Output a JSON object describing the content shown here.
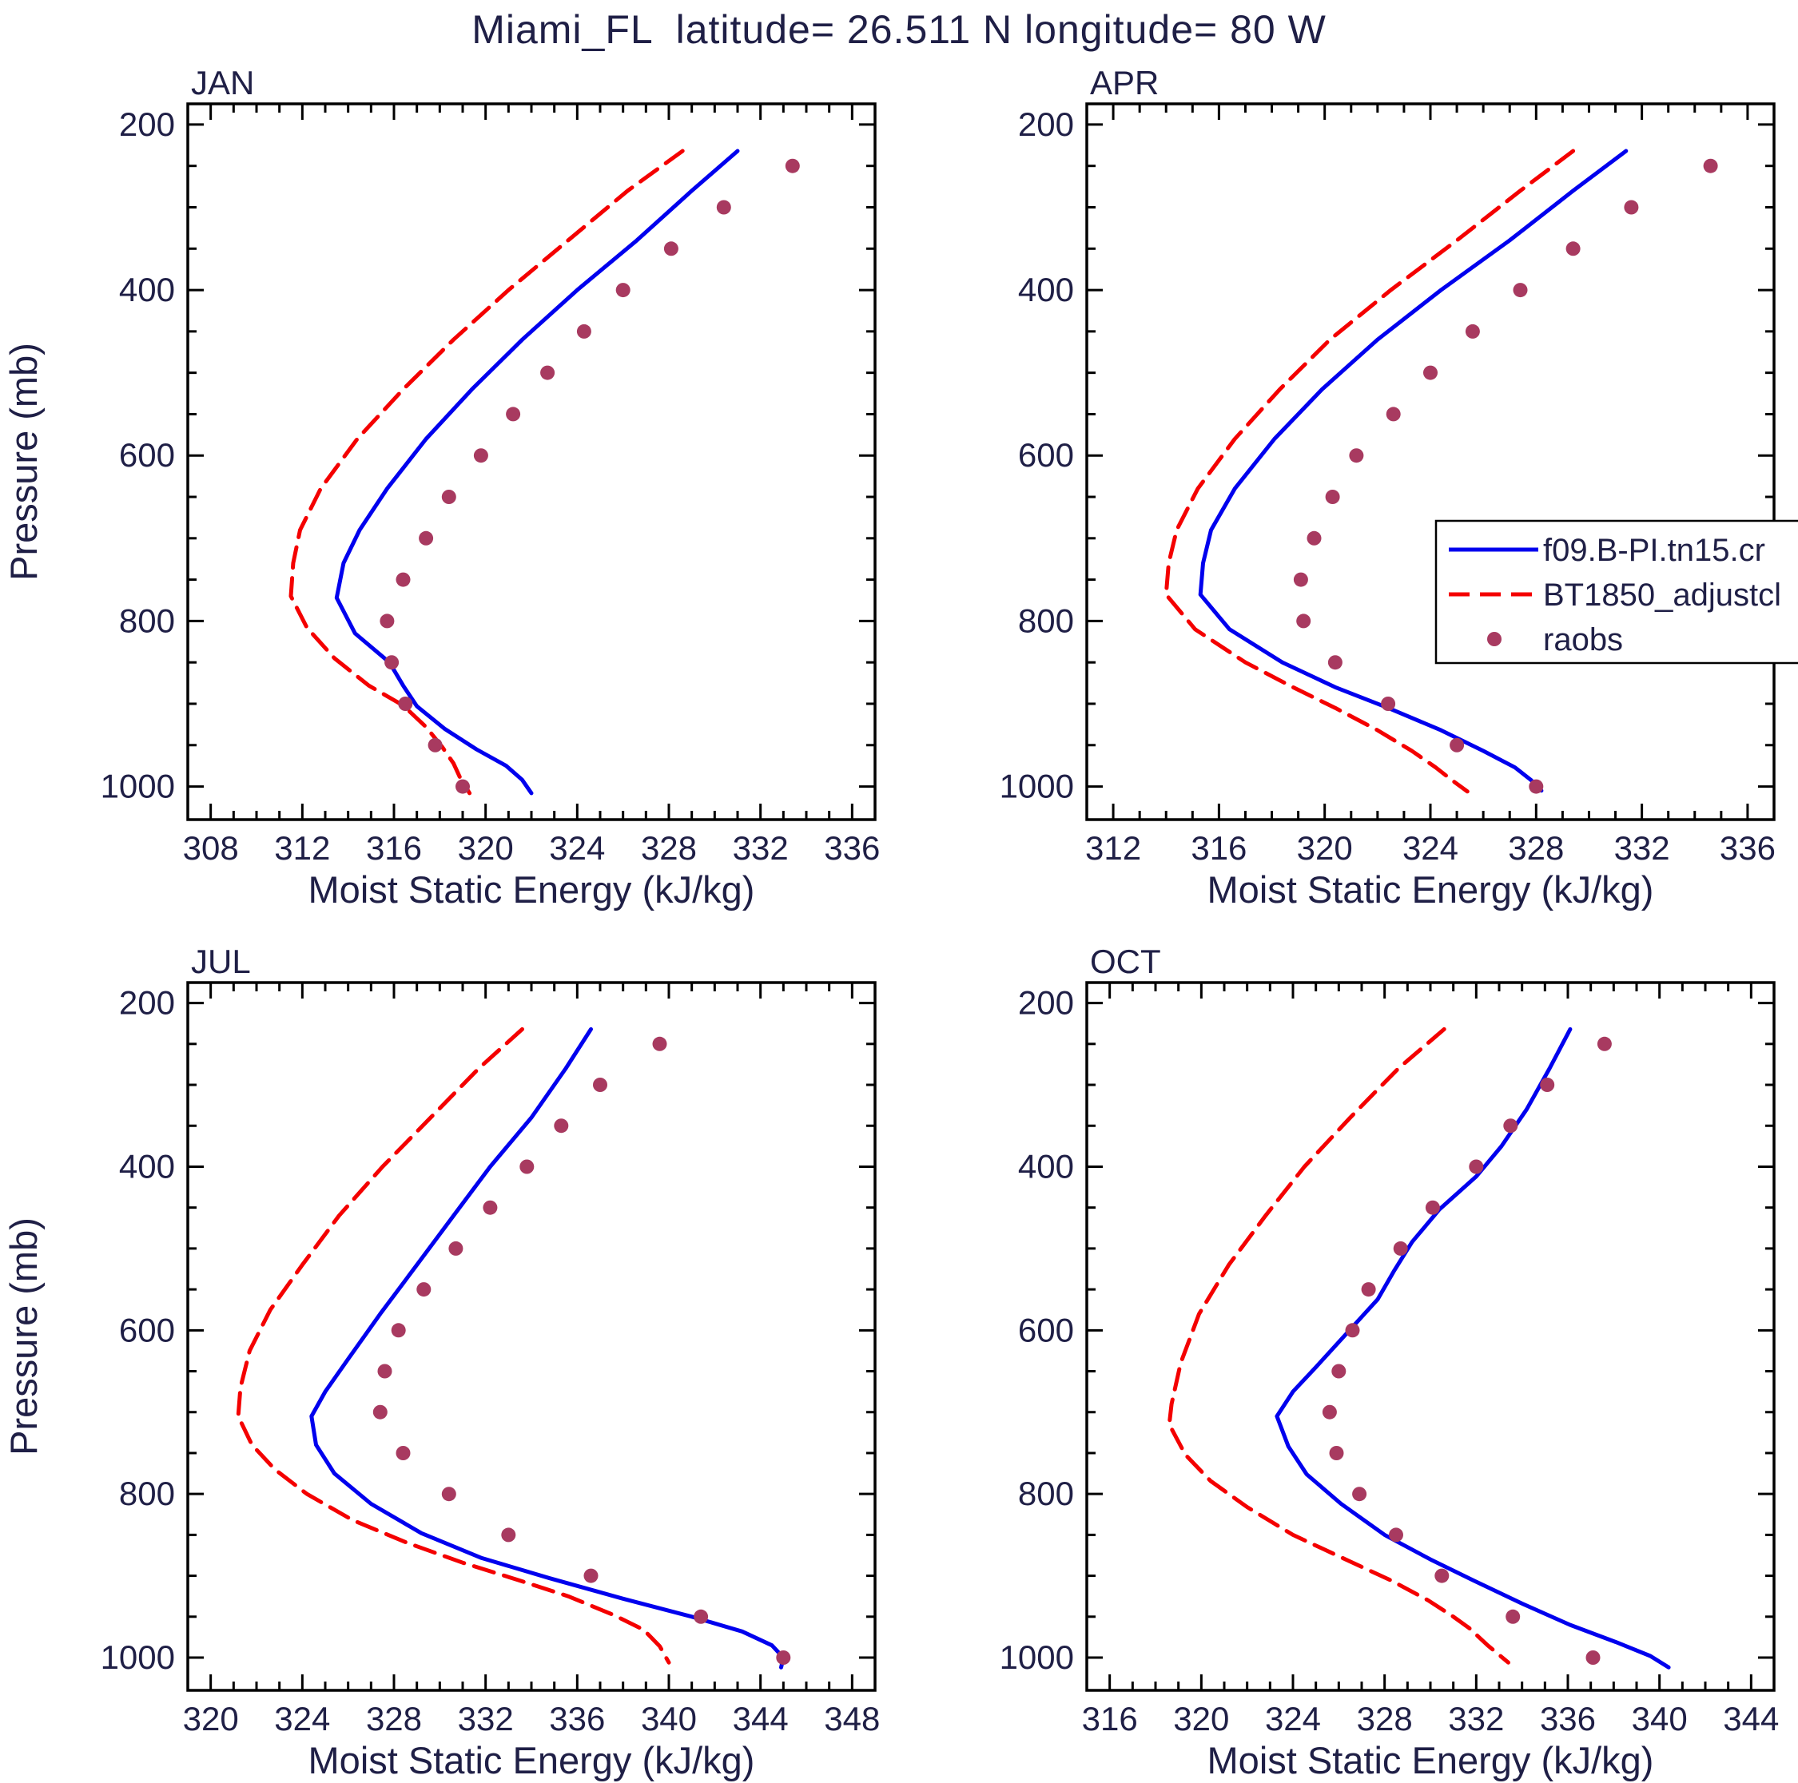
{
  "title": "Miami_FL  latitude= 26.511 N longitude= 80 W",
  "axes": {
    "x_label": "Moist Static Energy (kJ/kg)",
    "y_label": "Pressure (mb)",
    "y_ticks": [
      200,
      400,
      600,
      800,
      1000
    ],
    "y_range": [
      175,
      1040
    ],
    "y_minor_step": 50
  },
  "colors": {
    "model_line": "#0000ee",
    "bt1850_line": "#f40000",
    "raobs_dots": "#a83a60",
    "frame": "#000000",
    "text": "#1f1f46"
  },
  "legend": {
    "panel": "APR",
    "entries": [
      {
        "label": "f09.B-PI.tn15.cr",
        "style": "line-solid",
        "color": "#0000ee"
      },
      {
        "label": "BT1850_adjustcl",
        "style": "line-dashed",
        "color": "#f40000"
      },
      {
        "label": "raobs",
        "style": "dot",
        "color": "#a83a60"
      }
    ]
  },
  "chart_data": [
    {
      "type": "line",
      "label": "JAN",
      "x_ticks": [
        308,
        312,
        316,
        320,
        324,
        328,
        332,
        336
      ],
      "x_range": [
        307,
        337
      ],
      "x_minor_step": 1,
      "series": [
        {
          "name": "BT1850_adjustcl",
          "style": "dashed",
          "color": "#f40000",
          "points": [
            [
              328.6,
              232
            ],
            [
              326.2,
              280
            ],
            [
              323.6,
              340
            ],
            [
              321.0,
              400
            ],
            [
              318.6,
              460
            ],
            [
              316.4,
              520
            ],
            [
              314.4,
              580
            ],
            [
              312.8,
              640
            ],
            [
              311.9,
              690
            ],
            [
              311.6,
              730
            ],
            [
              311.5,
              770
            ],
            [
              312.2,
              808
            ],
            [
              313.4,
              845
            ],
            [
              314.9,
              878
            ],
            [
              316.4,
              902
            ],
            [
              317.4,
              928
            ],
            [
              318.1,
              952
            ],
            [
              318.6,
              972
            ],
            [
              318.9,
              990
            ],
            [
              319.3,
              1008
            ]
          ]
        },
        {
          "name": "f09.B-PI.tn15.cr",
          "style": "solid",
          "color": "#0000ee",
          "points": [
            [
              331.0,
              232
            ],
            [
              329.0,
              280
            ],
            [
              326.6,
              340
            ],
            [
              324.0,
              400
            ],
            [
              321.6,
              460
            ],
            [
              319.4,
              520
            ],
            [
              317.4,
              580
            ],
            [
              315.7,
              640
            ],
            [
              314.5,
              690
            ],
            [
              313.8,
              730
            ],
            [
              313.5,
              772
            ],
            [
              314.3,
              815
            ],
            [
              315.8,
              850
            ],
            [
              316.4,
              878
            ],
            [
              317.0,
              903
            ],
            [
              318.2,
              930
            ],
            [
              319.6,
              955
            ],
            [
              320.9,
              975
            ],
            [
              321.6,
              992
            ],
            [
              322.0,
              1008
            ]
          ]
        },
        {
          "name": "raobs",
          "style": "dots",
          "color": "#a83a60",
          "points": [
            [
              333.4,
              250
            ],
            [
              330.4,
              300
            ],
            [
              328.1,
              350
            ],
            [
              326.0,
              400
            ],
            [
              324.3,
              450
            ],
            [
              322.7,
              500
            ],
            [
              321.2,
              550
            ],
            [
              319.8,
              600
            ],
            [
              318.4,
              650
            ],
            [
              317.4,
              700
            ],
            [
              316.4,
              750
            ],
            [
              315.7,
              800
            ],
            [
              315.9,
              850
            ],
            [
              316.5,
              900
            ],
            [
              317.8,
              950
            ],
            [
              319.0,
              1000
            ]
          ]
        }
      ]
    },
    {
      "type": "line",
      "label": "APR",
      "x_ticks": [
        312,
        316,
        320,
        324,
        328,
        332,
        336
      ],
      "x_range": [
        311,
        337
      ],
      "x_minor_step": 1,
      "series": [
        {
          "name": "BT1850_adjustcl",
          "style": "dashed",
          "color": "#f40000",
          "points": [
            [
              329.4,
              232
            ],
            [
              327.4,
              280
            ],
            [
              325.0,
              340
            ],
            [
              322.5,
              400
            ],
            [
              320.2,
              460
            ],
            [
              318.3,
              520
            ],
            [
              316.6,
              580
            ],
            [
              315.2,
              640
            ],
            [
              314.4,
              690
            ],
            [
              314.1,
              730
            ],
            [
              314.0,
              768
            ],
            [
              315.1,
              810
            ],
            [
              317.0,
              850
            ],
            [
              318.8,
              880
            ],
            [
              320.4,
              905
            ],
            [
              322.0,
              932
            ],
            [
              323.3,
              957
            ],
            [
              324.2,
              977
            ],
            [
              324.8,
              992
            ],
            [
              325.4,
              1006
            ]
          ]
        },
        {
          "name": "f09.B-PI.tn15.cr",
          "style": "solid",
          "color": "#0000ee",
          "points": [
            [
              331.4,
              232
            ],
            [
              329.4,
              280
            ],
            [
              327.0,
              340
            ],
            [
              324.4,
              400
            ],
            [
              322.0,
              460
            ],
            [
              319.9,
              520
            ],
            [
              318.1,
              580
            ],
            [
              316.6,
              640
            ],
            [
              315.7,
              690
            ],
            [
              315.4,
              730
            ],
            [
              315.3,
              768
            ],
            [
              316.4,
              810
            ],
            [
              318.4,
              850
            ],
            [
              320.4,
              880
            ],
            [
              322.4,
              905
            ],
            [
              324.4,
              932
            ],
            [
              326.0,
              957
            ],
            [
              327.2,
              977
            ],
            [
              327.8,
              992
            ],
            [
              328.2,
              1005
            ]
          ]
        },
        {
          "name": "raobs",
          "style": "dots",
          "color": "#a83a60",
          "points": [
            [
              334.6,
              250
            ],
            [
              331.6,
              300
            ],
            [
              329.4,
              350
            ],
            [
              327.4,
              400
            ],
            [
              325.6,
              450
            ],
            [
              324.0,
              500
            ],
            [
              322.6,
              550
            ],
            [
              321.2,
              600
            ],
            [
              320.3,
              650
            ],
            [
              319.6,
              700
            ],
            [
              319.1,
              750
            ],
            [
              319.2,
              800
            ],
            [
              320.4,
              850
            ],
            [
              322.4,
              900
            ],
            [
              325.0,
              950
            ],
            [
              328.0,
              1000
            ]
          ]
        }
      ]
    },
    {
      "type": "line",
      "label": "JUL",
      "x_ticks": [
        320,
        324,
        328,
        332,
        336,
        340,
        344,
        348
      ],
      "x_range": [
        319,
        349
      ],
      "x_minor_step": 1,
      "series": [
        {
          "name": "BT1850_adjustcl",
          "style": "dashed",
          "color": "#f40000",
          "points": [
            [
              333.6,
              232
            ],
            [
              331.7,
              280
            ],
            [
              329.6,
              340
            ],
            [
              327.5,
              400
            ],
            [
              325.6,
              460
            ],
            [
              324.0,
              520
            ],
            [
              322.6,
              575
            ],
            [
              321.7,
              625
            ],
            [
              321.3,
              670
            ],
            [
              321.2,
              705
            ],
            [
              321.8,
              740
            ],
            [
              322.8,
              770
            ],
            [
              324.2,
              800
            ],
            [
              326.2,
              832
            ],
            [
              328.6,
              860
            ],
            [
              331.0,
              884
            ],
            [
              333.4,
              905
            ],
            [
              335.6,
              925
            ],
            [
              337.6,
              948
            ],
            [
              338.9,
              966
            ],
            [
              339.6,
              986
            ],
            [
              340.0,
              1006
            ]
          ]
        },
        {
          "name": "f09.B-PI.tn15.cr",
          "style": "solid",
          "color": "#0000ee",
          "points": [
            [
              336.6,
              232
            ],
            [
              335.5,
              280
            ],
            [
              334.0,
              340
            ],
            [
              332.2,
              400
            ],
            [
              330.6,
              460
            ],
            [
              329.0,
              520
            ],
            [
              327.4,
              580
            ],
            [
              326.0,
              635
            ],
            [
              325.0,
              675
            ],
            [
              324.4,
              705
            ],
            [
              324.6,
              740
            ],
            [
              325.4,
              775
            ],
            [
              327.0,
              812
            ],
            [
              329.2,
              848
            ],
            [
              331.8,
              878
            ],
            [
              334.8,
              903
            ],
            [
              338.0,
              928
            ],
            [
              341.0,
              950
            ],
            [
              343.2,
              968
            ],
            [
              344.5,
              985
            ],
            [
              345.0,
              1000
            ],
            [
              344.9,
              1012
            ]
          ]
        },
        {
          "name": "raobs",
          "style": "dots",
          "color": "#a83a60",
          "points": [
            [
              339.6,
              250
            ],
            [
              337.0,
              300
            ],
            [
              335.3,
              350
            ],
            [
              333.8,
              400
            ],
            [
              332.2,
              450
            ],
            [
              330.7,
              500
            ],
            [
              329.3,
              550
            ],
            [
              328.2,
              600
            ],
            [
              327.6,
              650
            ],
            [
              327.4,
              700
            ],
            [
              328.4,
              750
            ],
            [
              330.4,
              800
            ],
            [
              333.0,
              850
            ],
            [
              336.6,
              900
            ],
            [
              341.4,
              950
            ],
            [
              345.0,
              1000
            ]
          ]
        }
      ]
    },
    {
      "type": "line",
      "label": "OCT",
      "x_ticks": [
        316,
        320,
        324,
        328,
        332,
        336,
        340,
        344
      ],
      "x_range": [
        315,
        345
      ],
      "x_minor_step": 1,
      "series": [
        {
          "name": "BT1850_adjustcl",
          "style": "dashed",
          "color": "#f40000",
          "points": [
            [
              330.6,
              232
            ],
            [
              328.6,
              280
            ],
            [
              326.5,
              340
            ],
            [
              324.5,
              400
            ],
            [
              322.8,
              460
            ],
            [
              321.2,
              520
            ],
            [
              319.9,
              580
            ],
            [
              319.1,
              640
            ],
            [
              318.7,
              690
            ],
            [
              318.6,
              715
            ],
            [
              319.3,
              752
            ],
            [
              320.4,
              784
            ],
            [
              322.0,
              816
            ],
            [
              324.0,
              850
            ],
            [
              326.3,
              880
            ],
            [
              328.3,
              906
            ],
            [
              329.9,
              930
            ],
            [
              331.0,
              950
            ],
            [
              331.7,
              964
            ],
            [
              332.5,
              985
            ],
            [
              333.4,
              1006
            ]
          ]
        },
        {
          "name": "f09.B-PI.tn15.cr",
          "style": "solid",
          "color": "#0000ee",
          "points": [
            [
              336.1,
              232
            ],
            [
              335.2,
              280
            ],
            [
              334.2,
              330
            ],
            [
              333.1,
              375
            ],
            [
              332.0,
              412
            ],
            [
              330.4,
              452
            ],
            [
              329.2,
              492
            ],
            [
              328.4,
              528
            ],
            [
              327.7,
              562
            ],
            [
              326.4,
              602
            ],
            [
              325.0,
              645
            ],
            [
              324.0,
              675
            ],
            [
              323.3,
              705
            ],
            [
              323.8,
              742
            ],
            [
              324.6,
              776
            ],
            [
              326.1,
              812
            ],
            [
              328.0,
              850
            ],
            [
              330.0,
              880
            ],
            [
              331.9,
              906
            ],
            [
              334.0,
              934
            ],
            [
              336.1,
              960
            ],
            [
              338.1,
              981
            ],
            [
              339.6,
              998
            ],
            [
              340.4,
              1012
            ]
          ]
        },
        {
          "name": "raobs",
          "style": "dots",
          "color": "#a83a60",
          "points": [
            [
              337.6,
              250
            ],
            [
              335.1,
              300
            ],
            [
              333.5,
              350
            ],
            [
              332.0,
              400
            ],
            [
              330.1,
              450
            ],
            [
              328.7,
              500
            ],
            [
              327.3,
              550
            ],
            [
              326.6,
              600
            ],
            [
              326.0,
              650
            ],
            [
              325.6,
              700
            ],
            [
              325.9,
              750
            ],
            [
              326.9,
              800
            ],
            [
              328.5,
              850
            ],
            [
              330.5,
              900
            ],
            [
              333.6,
              950
            ],
            [
              337.1,
              1000
            ]
          ]
        }
      ]
    }
  ]
}
